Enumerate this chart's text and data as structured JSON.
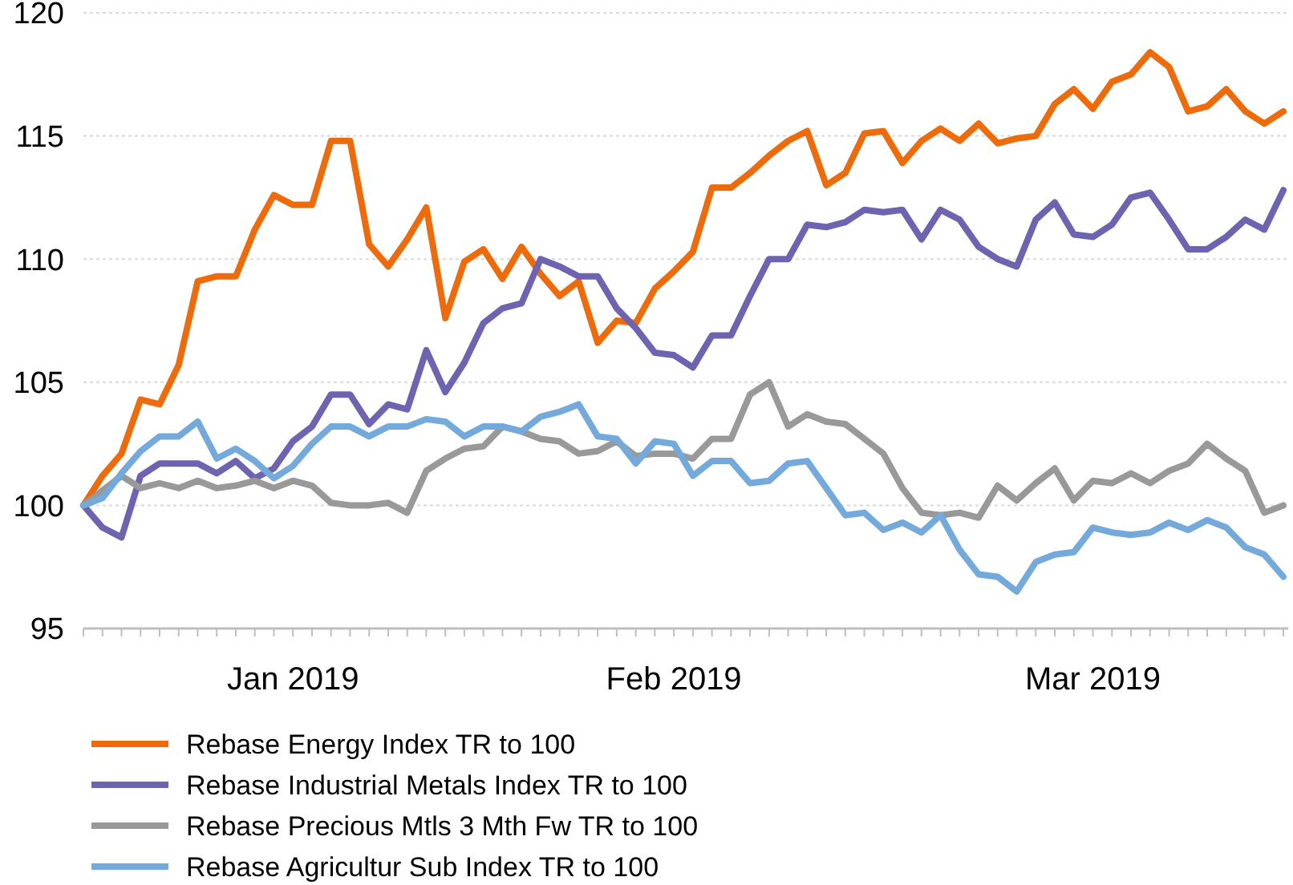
{
  "chart_data": {
    "type": "line",
    "categories": [
      null,
      null,
      null,
      null,
      null,
      null,
      null,
      null,
      null,
      null,
      null,
      "Jan 2019",
      null,
      null,
      null,
      null,
      null,
      null,
      null,
      null,
      null,
      null,
      null,
      null,
      null,
      null,
      null,
      null,
      null,
      null,
      null,
      "Feb 2019",
      null,
      null,
      null,
      null,
      null,
      null,
      null,
      null,
      null,
      null,
      null,
      null,
      null,
      null,
      null,
      null,
      null,
      null,
      null,
      null,
      null,
      "Mar 2019",
      null,
      null,
      null,
      null,
      null,
      null,
      null,
      null,
      null,
      null
    ],
    "ylim": [
      95,
      120
    ],
    "yticks": [
      95,
      100,
      105,
      110,
      115,
      120
    ],
    "grid": "y",
    "legend": "bottom",
    "marker": "none",
    "line_style": "solid",
    "series": [
      {
        "name": "Rebase Energy Index TR to 100",
        "color": "#ed6b0a",
        "values": [
          100,
          101.2,
          102.1,
          104.3,
          104.1,
          105.7,
          109.1,
          109.3,
          109.3,
          111.2,
          112.6,
          112.2,
          112.2,
          114.8,
          114.8,
          110.6,
          109.7,
          110.8,
          112.1,
          107.6,
          109.9,
          110.4,
          109.2,
          110.5,
          109.4,
          108.5,
          109.1,
          106.6,
          107.5,
          107.4,
          108.8,
          109.5,
          110.3,
          112.9,
          112.9,
          113.5,
          114.2,
          114.8,
          115.2,
          113.0,
          113.5,
          115.1,
          115.2,
          113.9,
          114.8,
          115.3,
          114.8,
          115.5,
          114.7,
          114.9,
          115.0,
          116.3,
          116.9,
          116.1,
          117.2,
          117.5,
          118.4,
          117.8,
          116.0,
          116.2,
          116.9,
          116.0,
          115.5,
          116.0
        ]
      },
      {
        "name": "Rebase Industrial Metals Index TR to 100",
        "color": "#6e63b0",
        "values": [
          100,
          99.1,
          98.7,
          101.2,
          101.7,
          101.7,
          101.7,
          101.3,
          101.8,
          101.1,
          101.5,
          102.6,
          103.2,
          104.5,
          104.5,
          103.3,
          104.1,
          103.9,
          106.3,
          104.6,
          105.8,
          107.4,
          108.0,
          108.2,
          110.0,
          109.7,
          109.3,
          109.3,
          108.0,
          107.2,
          106.2,
          106.1,
          105.6,
          106.9,
          106.9,
          108.5,
          110.0,
          110.0,
          111.4,
          111.3,
          111.5,
          112.0,
          111.9,
          112.0,
          110.8,
          112.0,
          111.6,
          110.5,
          110.0,
          109.7,
          111.6,
          112.3,
          111.0,
          110.9,
          111.4,
          112.5,
          112.7,
          111.6,
          110.4,
          110.4,
          110.9,
          111.6,
          111.2,
          112.8
        ]
      },
      {
        "name": "Rebase Precious Mtls 3 Mth Fw TR to 100",
        "color": "#999999",
        "values": [
          100,
          100.6,
          101.2,
          100.7,
          100.9,
          100.7,
          101.0,
          100.7,
          100.8,
          101.0,
          100.7,
          101.0,
          100.8,
          100.1,
          100.0,
          100.0,
          100.1,
          99.7,
          101.4,
          101.9,
          102.3,
          102.4,
          103.2,
          103.0,
          102.7,
          102.6,
          102.1,
          102.2,
          102.6,
          102.0,
          102.1,
          102.1,
          101.9,
          102.7,
          102.7,
          104.5,
          105.0,
          103.2,
          103.7,
          103.4,
          103.3,
          102.7,
          102.1,
          100.7,
          99.7,
          99.6,
          99.7,
          99.5,
          100.8,
          100.2,
          100.9,
          101.5,
          100.2,
          101.0,
          100.9,
          101.3,
          100.9,
          101.4,
          101.7,
          102.5,
          101.9,
          101.4,
          99.7,
          100.0
        ]
      },
      {
        "name": "Rebase Agricultur Sub Index TR to 100",
        "color": "#74a9db",
        "values": [
          100,
          100.3,
          101.3,
          102.2,
          102.8,
          102.8,
          103.4,
          101.9,
          102.3,
          101.8,
          101.1,
          101.6,
          102.5,
          103.2,
          103.2,
          102.8,
          103.2,
          103.2,
          103.5,
          103.4,
          102.8,
          103.2,
          103.2,
          103.0,
          103.6,
          103.8,
          104.1,
          102.8,
          102.7,
          101.7,
          102.6,
          102.5,
          101.2,
          101.8,
          101.8,
          100.9,
          101.0,
          101.7,
          101.8,
          100.7,
          99.6,
          99.7,
          99.0,
          99.3,
          98.9,
          99.6,
          98.2,
          97.2,
          97.1,
          96.5,
          97.7,
          98.0,
          98.1,
          99.1,
          98.9,
          98.8,
          98.9,
          99.3,
          99.0,
          99.4,
          99.1,
          98.3,
          98.0,
          97.1
        ]
      }
    ]
  }
}
